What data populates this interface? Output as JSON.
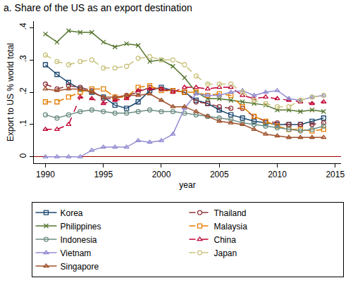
{
  "chart_data": {
    "type": "line",
    "title": "a. Share of the US as an export destination",
    "x_label": "year",
    "y_label": "Export to US % world total",
    "x": [
      1990,
      1991,
      1992,
      1993,
      1994,
      1995,
      1996,
      1997,
      1998,
      1999,
      2000,
      2001,
      2002,
      2003,
      2004,
      2005,
      2006,
      2007,
      2008,
      2009,
      2010,
      2011,
      2012,
      2013,
      2014
    ],
    "xlim": [
      1989,
      2015.5
    ],
    "xticks": [
      1990,
      1995,
      2000,
      2005,
      2010,
      2015
    ],
    "ylim": [
      -0.02,
      0.42
    ],
    "yticks": [
      0,
      {
        "value": 0.1,
        "label": ".1"
      },
      {
        "value": 0.2,
        "label": ".2"
      },
      {
        "value": 0.3,
        "label": ".3"
      },
      {
        "value": 0.4,
        "label": ".4"
      }
    ],
    "grid": false,
    "legend": "bottom",
    "series": [
      {
        "name": "Korea",
        "color": "#1a476f",
        "marker": "square",
        "line_style": "solid",
        "values": [
          0.285,
          0.255,
          0.23,
          0.21,
          0.2,
          0.185,
          0.16,
          0.15,
          0.17,
          0.205,
          0.215,
          0.205,
          0.2,
          0.175,
          0.165,
          0.145,
          0.13,
          0.12,
          0.11,
          0.105,
          0.1,
          0.1,
          0.1,
          0.11,
          0.12
        ]
      },
      {
        "name": "Thailand",
        "color": "#90353b",
        "marker": "circle",
        "line_style": "dash",
        "values": [
          0.225,
          0.21,
          0.22,
          0.215,
          0.205,
          0.18,
          0.18,
          0.19,
          0.2,
          0.215,
          0.21,
          0.205,
          0.2,
          0.17,
          0.165,
          0.155,
          0.15,
          0.15,
          0.125,
          0.11,
          0.105,
          0.1,
          0.1,
          0.1,
          0.105
        ]
      },
      {
        "name": "Philippines",
        "color": "#55752f",
        "marker": "x",
        "line_style": "solid",
        "values": [
          0.38,
          0.355,
          0.39,
          0.385,
          0.385,
          0.355,
          0.34,
          0.35,
          0.345,
          0.295,
          0.3,
          0.28,
          0.245,
          0.2,
          0.18,
          0.18,
          0.175,
          0.17,
          0.165,
          0.16,
          0.145,
          0.145,
          0.14,
          0.145,
          0.14
        ]
      },
      {
        "name": "Malaysia",
        "color": "#e37e00",
        "marker": "square",
        "line_style": "dash",
        "values": [
          0.17,
          0.17,
          0.185,
          0.2,
          0.21,
          0.21,
          0.185,
          0.185,
          0.215,
          0.22,
          0.205,
          0.205,
          0.2,
          0.2,
          0.19,
          0.195,
          0.19,
          0.155,
          0.125,
          0.11,
          0.095,
          0.085,
          0.085,
          0.08,
          0.085
        ]
      },
      {
        "name": "Indonesia",
        "color": "#6e8e84",
        "marker": "circle",
        "line_style": "solid",
        "values": [
          0.13,
          0.12,
          0.13,
          0.14,
          0.145,
          0.14,
          0.135,
          0.135,
          0.14,
          0.145,
          0.14,
          0.14,
          0.135,
          0.13,
          0.125,
          0.12,
          0.115,
          0.105,
          0.1,
          0.095,
          0.09,
          0.085,
          0.08,
          0.085,
          0.095
        ]
      },
      {
        "name": "China",
        "color": "#c10534",
        "marker": "triangle",
        "line_style": "dash",
        "values": [
          0.085,
          0.085,
          0.1,
          0.185,
          0.18,
          0.165,
          0.175,
          0.18,
          0.205,
          0.21,
          0.21,
          0.2,
          0.215,
          0.215,
          0.21,
          0.215,
          0.215,
          0.19,
          0.18,
          0.185,
          0.18,
          0.175,
          0.17,
          0.165,
          0.17
        ]
      },
      {
        "name": "Vietnam",
        "color": "#938dd2",
        "marker": "triangle",
        "line_style": "solid",
        "values": [
          0,
          0,
          0,
          0,
          0.02,
          0.03,
          0.03,
          0.03,
          0.05,
          0.045,
          0.05,
          0.07,
          0.15,
          0.195,
          0.19,
          0.19,
          0.2,
          0.205,
          0.19,
          0.2,
          0.205,
          0.18,
          0.175,
          0.185,
          0.19
        ]
      },
      {
        "name": "Japan",
        "color": "#cac27e",
        "marker": "circle",
        "line_style": "dash",
        "values": [
          0.315,
          0.295,
          0.285,
          0.295,
          0.3,
          0.275,
          0.275,
          0.28,
          0.305,
          0.31,
          0.3,
          0.3,
          0.285,
          0.25,
          0.225,
          0.225,
          0.225,
          0.2,
          0.175,
          0.165,
          0.155,
          0.155,
          0.175,
          0.185,
          0.19
        ]
      },
      {
        "name": "Singapore",
        "color": "#a0522d",
        "marker": "triangle",
        "line_style": "solid",
        "values": [
          0.21,
          0.205,
          0.21,
          0.21,
          0.2,
          0.185,
          0.185,
          0.19,
          0.19,
          0.195,
          0.175,
          0.155,
          0.155,
          0.14,
          0.125,
          0.11,
          0.105,
          0.1,
          0.085,
          0.07,
          0.065,
          0.06,
          0.06,
          0.06,
          0.06
        ]
      }
    ]
  }
}
